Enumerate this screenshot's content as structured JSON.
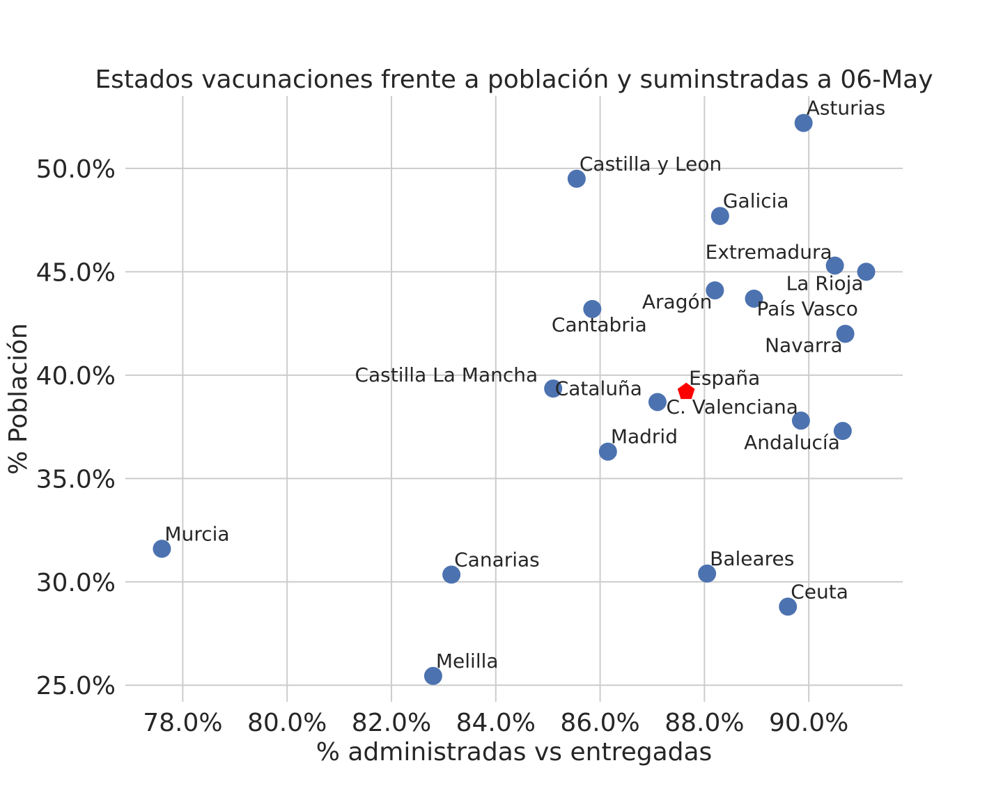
{
  "chart_data": {
    "type": "scatter",
    "title": "Estados vacunaciones frente a población y suminstradas a 06-May",
    "xlabel": "% administradas vs entregadas",
    "ylabel": "% Población",
    "xlim": [
      76.9,
      91.8
    ],
    "ylim": [
      24.2,
      53.5
    ],
    "xticks": [
      78,
      80,
      82,
      84,
      86,
      88,
      90
    ],
    "xtick_labels": [
      "78.0%",
      "80.0%",
      "82.0%",
      "84.0%",
      "86.0%",
      "88.0%",
      "90.0%"
    ],
    "yticks": [
      25,
      30,
      35,
      40,
      45,
      50
    ],
    "ytick_labels": [
      "25.0%",
      "30.0%",
      "35.0%",
      "40.0%",
      "45.0%",
      "50.0%"
    ],
    "grid": true,
    "colors": {
      "points": "#4c72b0",
      "highlight": "#ff0000",
      "grid": "#cccccc",
      "text": "#262626"
    },
    "points": [
      {
        "label": "Asturias",
        "x": 89.9,
        "y": 52.2,
        "label_pos": "above-right"
      },
      {
        "label": "Castilla y Leon",
        "x": 85.55,
        "y": 49.5,
        "label_pos": "above-right"
      },
      {
        "label": "Galicia",
        "x": 88.3,
        "y": 47.7,
        "label_pos": "above-right"
      },
      {
        "label": "Extremadura",
        "x": 90.5,
        "y": 45.3,
        "label_pos": "above-left"
      },
      {
        "label": "La Rioja",
        "x": 91.1,
        "y": 45.0,
        "label_pos": "below-left"
      },
      {
        "label": "Aragón",
        "x": 88.2,
        "y": 44.1,
        "label_pos": "below-left"
      },
      {
        "label": "País Vasco",
        "x": 88.95,
        "y": 43.7,
        "label_pos": "below-right"
      },
      {
        "label": "Cantabria",
        "x": 85.85,
        "y": 43.2,
        "label_pos": "below"
      },
      {
        "label": "Navarra",
        "x": 90.7,
        "y": 42.0,
        "label_pos": "below-left"
      },
      {
        "label": "Castilla La Mancha",
        "x": 85.1,
        "y": 39.35,
        "label_pos": "left"
      },
      {
        "label": "Cataluña",
        "x": 87.1,
        "y": 38.7,
        "label_pos": "left"
      },
      {
        "label": "C. Valenciana",
        "x": 89.85,
        "y": 37.8,
        "label_pos": "above-left"
      },
      {
        "label": "Andalucía",
        "x": 90.65,
        "y": 37.3,
        "label_pos": "below-left"
      },
      {
        "label": "Madrid",
        "x": 86.15,
        "y": 36.3,
        "label_pos": "above-right"
      },
      {
        "label": "Murcia",
        "x": 77.6,
        "y": 31.6,
        "label_pos": "above-right"
      },
      {
        "label": "Canarias",
        "x": 83.15,
        "y": 30.35,
        "label_pos": "above-right"
      },
      {
        "label": "Baleares",
        "x": 88.05,
        "y": 30.4,
        "label_pos": "above-right"
      },
      {
        "label": "Ceuta",
        "x": 89.6,
        "y": 28.8,
        "label_pos": "above-right"
      },
      {
        "label": "Melilla",
        "x": 82.8,
        "y": 25.45,
        "label_pos": "above-right"
      }
    ],
    "highlight": {
      "label": "España",
      "x": 87.65,
      "y": 39.2,
      "marker": "pentagon"
    }
  }
}
